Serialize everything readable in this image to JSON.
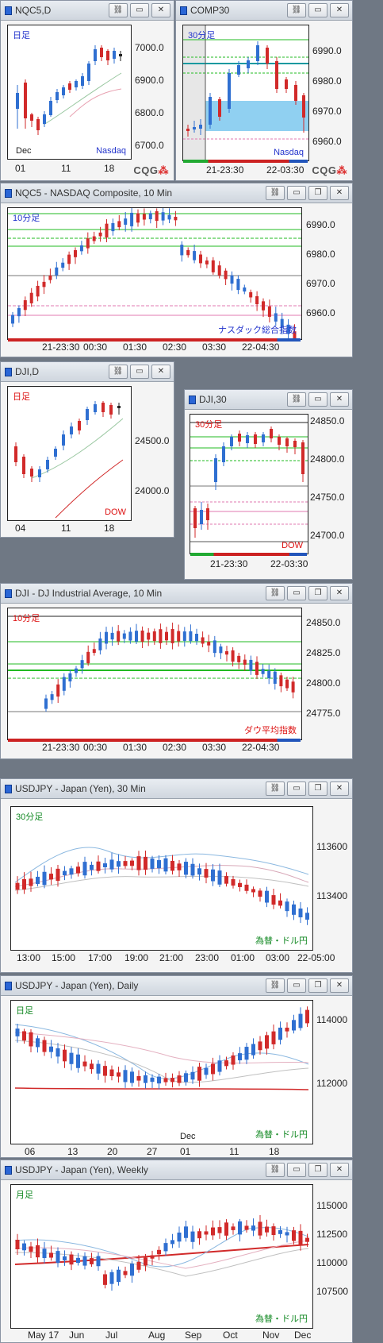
{
  "windows": [
    {
      "id": "nqc5d",
      "title": "NQC5,D",
      "tag": "日足",
      "tag_color": "#2233cc",
      "symbol": "Nasdaq",
      "symbol_color": "#2233cc",
      "y_ticks": [
        "7000.0",
        "6900.0",
        "6800.0",
        "6700.0"
      ],
      "x_ticks": [
        "01",
        "11",
        "18"
      ],
      "x_extra": "Dec"
    },
    {
      "id": "comp30",
      "title": "COMP30",
      "tag": "30分足",
      "tag_color": "#2233cc",
      "symbol": "Nasdaq",
      "symbol_color": "#2233cc",
      "y_ticks": [
        "6990.0",
        "6980.0",
        "6970.0",
        "6960.0"
      ],
      "x_ticks": [
        "21-23:30",
        "22-03:30"
      ]
    },
    {
      "id": "nqc5_10",
      "title": "NQC5 - NASDAQ Composite, 10 Min",
      "tag": "10分足",
      "tag_color": "#2233cc",
      "symbol": "ナスダック総合指数",
      "symbol_color": "#2233cc",
      "y_ticks": [
        "6990.0",
        "6980.0",
        "6970.0",
        "6960.0"
      ],
      "x_ticks": [
        "21-23:30",
        "00:30",
        "01:30",
        "02:30",
        "03:30",
        "22-04:30"
      ]
    },
    {
      "id": "djid",
      "title": "DJI,D",
      "tag": "日足",
      "tag_color": "#dd1111",
      "symbol": "DOW",
      "symbol_color": "#dd1111",
      "y_ticks": [
        "24500.0",
        "24000.0"
      ],
      "x_ticks": [
        "04",
        "11",
        "18"
      ]
    },
    {
      "id": "dji30",
      "title": "DJI,30",
      "tag": "30分足",
      "tag_color": "#dd1111",
      "symbol": "DOW",
      "symbol_color": "#dd1111",
      "y_ticks": [
        "24850.0",
        "24800.0",
        "24750.0",
        "24700.0"
      ],
      "x_ticks": [
        "21-23:30",
        "22-03:30"
      ]
    },
    {
      "id": "dji10",
      "title": "DJI - DJ Industrial Average, 10 Min",
      "tag": "10分足",
      "tag_color": "#dd1111",
      "symbol": "ダウ平均指数",
      "symbol_color": "#dd1111",
      "y_ticks": [
        "24850.0",
        "24825.0",
        "24800.0",
        "24775.0"
      ],
      "x_ticks": [
        "21-23:30",
        "00:30",
        "01:30",
        "02:30",
        "03:30",
        "22-04:30"
      ]
    },
    {
      "id": "usd30",
      "title": "USDJPY - Japan (Yen), 30 Min",
      "tag": "30分足",
      "tag_color": "#118822",
      "symbol": "為替・ドル円",
      "symbol_color": "#118822",
      "y_ticks": [
        "113600",
        "113400"
      ],
      "x_ticks": [
        "13:00",
        "15:00",
        "17:00",
        "19:00",
        "21:00",
        "23:00",
        "01:00",
        "03:00",
        "22-05:00"
      ]
    },
    {
      "id": "usdd",
      "title": "USDJPY - Japan (Yen), Daily",
      "tag": "日足",
      "tag_color": "#118822",
      "symbol": "為替・ドル円",
      "symbol_color": "#118822",
      "y_ticks": [
        "114000",
        "112000"
      ],
      "x_ticks": [
        "06",
        "13",
        "20",
        "27",
        "01",
        "11",
        "18"
      ],
      "x_extra": "Dec"
    },
    {
      "id": "usdw",
      "title": "USDJPY - Japan (Yen), Weekly",
      "tag": "月足",
      "tag_color": "#118822",
      "symbol": "為替・ドル円",
      "symbol_color": "#118822",
      "y_ticks": [
        "115000",
        "112500",
        "110000",
        "107500"
      ],
      "x_ticks": [
        "May 17",
        "Jun",
        "Jul",
        "Aug",
        "Sep",
        "Oct",
        "Nov",
        "Dec"
      ]
    }
  ],
  "logo": {
    "text": "CQG",
    "accent": "#dd2222"
  },
  "button_icons": [
    "link-icon",
    "minimize-icon",
    "restore-icon",
    "close-icon"
  ],
  "colors": {
    "bull": "#2f6fd1",
    "bear": "#d12a2a",
    "support": "#22bb22",
    "highlight": "#7cc8ef"
  }
}
